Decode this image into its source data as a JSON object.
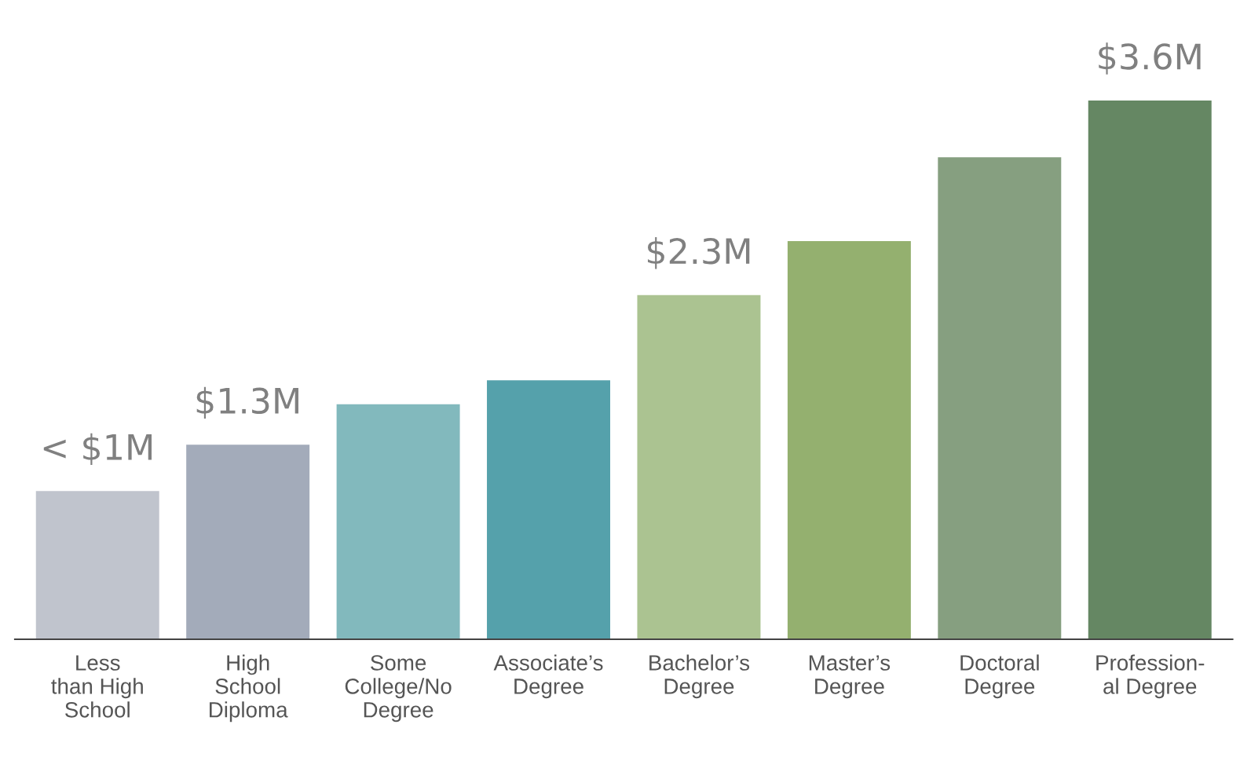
{
  "chart_data": {
    "type": "bar",
    "tick_labels": "x",
    "categories": [
      "Less\nthan High\nSchool",
      "High\nSchool\nDiploma",
      "Some\nCollege/No\nDegree",
      "Associate’s\nDegree",
      "Bachelor’s\nDegree",
      "Master’s\nDegree",
      "Doctoral\nDegree",
      "Profession-\nal Degree"
    ],
    "values": [
      0.99,
      1.3,
      1.57,
      1.73,
      2.3,
      2.66,
      3.22,
      3.6
    ],
    "colors": [
      "#c0c4cd",
      "#a3abba",
      "#82b9bd",
      "#55a1ab",
      "#abc391",
      "#94b06f",
      "#869f80",
      "#658763"
    ],
    "value_labels": [
      "< $1M",
      "$1.3M",
      null,
      null,
      "$2.3M",
      null,
      null,
      "$3.6M"
    ]
  }
}
